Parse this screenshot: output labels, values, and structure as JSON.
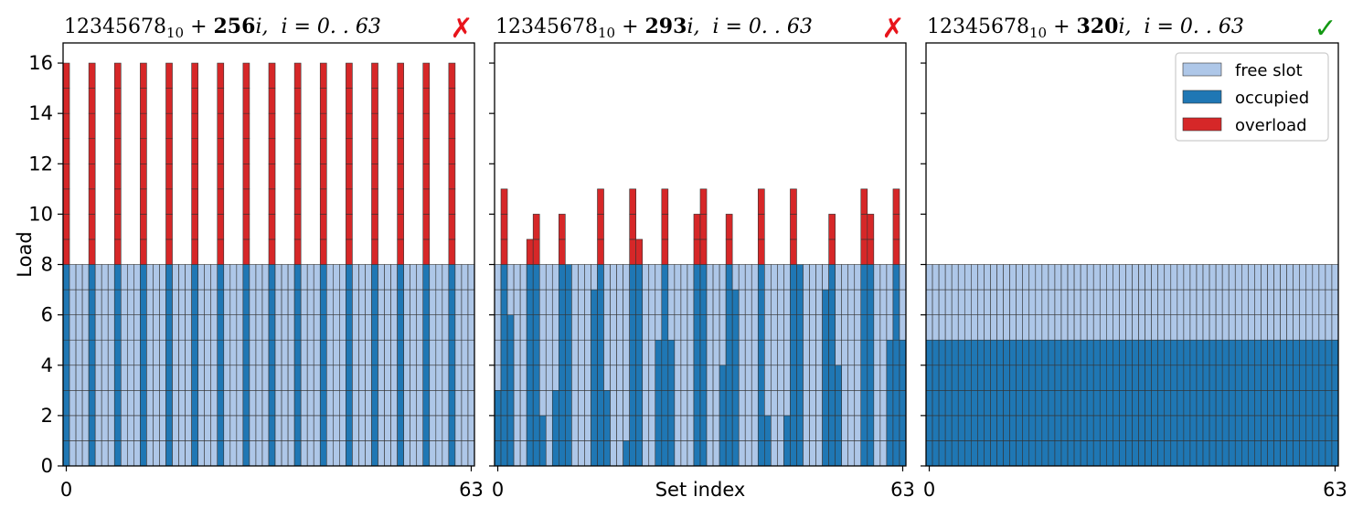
{
  "chart_data": [
    {
      "type": "bar",
      "stacked": true,
      "title_parts": {
        "base": "12345678",
        "sub": "10",
        "mid": " + ",
        "stride": "256",
        "after": "i,",
        "range": "i = 0. . 63"
      },
      "status_mark": "✗",
      "status_color": "#e8141b",
      "ylabel": "Load",
      "xlabel": "",
      "xticks": [
        "0",
        "63"
      ],
      "yticks": [
        "0",
        "2",
        "4",
        "6",
        "8",
        "10",
        "12",
        "14",
        "16"
      ],
      "ylim": [
        0,
        16.8
      ],
      "xlim": [
        -0.5,
        63.5
      ],
      "capacity": 8,
      "loads": [
        16,
        0,
        0,
        0,
        16,
        0,
        0,
        0,
        16,
        0,
        0,
        0,
        16,
        0,
        0,
        0,
        16,
        0,
        0,
        0,
        16,
        0,
        0,
        0,
        16,
        0,
        0,
        0,
        16,
        0,
        0,
        0,
        16,
        0,
        0,
        0,
        16,
        0,
        0,
        0,
        16,
        0,
        0,
        0,
        16,
        0,
        0,
        0,
        16,
        0,
        0,
        0,
        16,
        0,
        0,
        0,
        16,
        0,
        0,
        0,
        16,
        0,
        0,
        0
      ]
    },
    {
      "type": "bar",
      "stacked": true,
      "title_parts": {
        "base": "12345678",
        "sub": "10",
        "mid": " + ",
        "stride": "293",
        "after": "i,",
        "range": "i = 0. . 63"
      },
      "status_mark": "✗",
      "status_color": "#e8141b",
      "ylabel": "",
      "xlabel": "Set index",
      "xticks": [
        "0",
        "63"
      ],
      "yticks": [],
      "ylim": [
        0,
        16.8
      ],
      "xlim": [
        -0.5,
        63.5
      ],
      "capacity": 8,
      "loads": [
        3,
        11,
        6,
        0,
        0,
        9,
        10,
        2,
        0,
        3,
        10,
        8,
        0,
        0,
        0,
        7,
        11,
        3,
        0,
        0,
        1,
        11,
        9,
        0,
        0,
        5,
        11,
        5,
        0,
        0,
        0,
        10,
        11,
        0,
        0,
        4,
        10,
        7,
        0,
        0,
        0,
        11,
        2,
        0,
        0,
        2,
        11,
        8,
        0,
        0,
        0,
        7,
        10,
        4,
        0,
        0,
        0,
        11,
        10,
        0,
        0,
        5,
        11,
        5
      ]
    },
    {
      "type": "bar",
      "stacked": true,
      "title_parts": {
        "base": "12345678",
        "sub": "10",
        "mid": " + ",
        "stride": "320",
        "after": "i,",
        "range": "i = 0. . 63"
      },
      "status_mark": "✓",
      "status_color": "#139813",
      "ylabel": "",
      "xlabel": "",
      "xticks": [
        "0",
        "63"
      ],
      "yticks": [],
      "ylim": [
        0,
        16.8
      ],
      "xlim": [
        -0.5,
        63.5
      ],
      "capacity": 8,
      "loads": [
        5,
        5,
        5,
        5,
        5,
        5,
        5,
        5,
        5,
        5,
        5,
        5,
        5,
        5,
        5,
        5,
        5,
        5,
        5,
        5,
        5,
        5,
        5,
        5,
        5,
        5,
        5,
        5,
        5,
        5,
        5,
        5,
        5,
        5,
        5,
        5,
        5,
        5,
        5,
        5,
        5,
        5,
        5,
        5,
        5,
        5,
        5,
        5,
        5,
        5,
        5,
        5,
        5,
        5,
        5,
        5,
        5,
        5,
        5,
        5,
        5,
        5,
        5,
        5
      ]
    }
  ],
  "legend": {
    "placement": "upper-right",
    "entries": [
      {
        "label": "free slot",
        "color": "#aec7e8"
      },
      {
        "label": "occupied",
        "color": "#1f77b4"
      },
      {
        "label": "overload",
        "color": "#d62728"
      }
    ]
  },
  "colors": {
    "free": "#aec7e8",
    "occupied": "#1f77b4",
    "overload": "#d62728",
    "edge": "#333333",
    "axis": "#000000"
  }
}
